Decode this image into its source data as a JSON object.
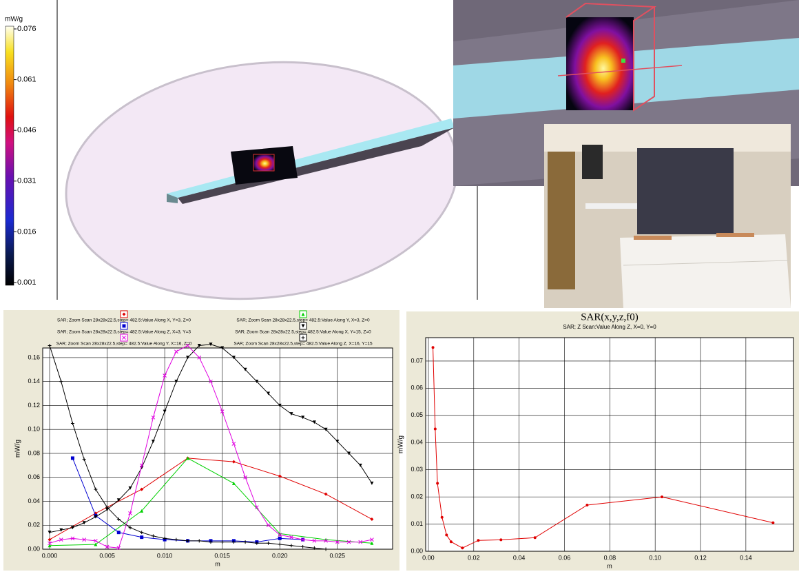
{
  "colorbar": {
    "label": "mW/g",
    "lim": [
      0.001,
      0.076
    ],
    "ticks": [
      0.076,
      0.061,
      0.046,
      0.031,
      0.016,
      0.001
    ]
  },
  "chart_data": [
    {
      "type": "line",
      "xlabel": "m",
      "ylabel": "mW/g",
      "xlim": [
        -0.0006,
        0.0298
      ],
      "ylim": [
        0,
        0.168
      ],
      "xticks": [
        {
          "value": 0,
          "label": "0.000"
        },
        0.005,
        {
          "value": 0.01,
          "label": "0.010"
        },
        0.015,
        {
          "value": 0.02,
          "label": "0.020"
        },
        0.025
      ],
      "yticks": [
        {
          "value": 0,
          "label": "0.00"
        },
        0.02,
        0.04,
        0.06,
        0.08,
        {
          "value": 0.1,
          "label": "0.10"
        },
        0.12,
        0.14,
        0.16
      ],
      "grid": true,
      "series": [
        {
          "name": "SAR; Zoom Scan 28x28x22.5,step= 482.5:Value Along X, Y=3, Z=0",
          "color": "#e00000",
          "marker": "diamond",
          "x": [
            0,
            0.004,
            0.008,
            0.012,
            0.016,
            0.02,
            0.024,
            0.028
          ],
          "values": [
            0.008,
            0.03,
            0.05,
            0.076,
            0.073,
            0.061,
            0.046,
            0.025
          ]
        },
        {
          "name": "SAR; Zoom Scan 28x28x22.5,step= 482.5:Value Along Y, X=3, Z=0",
          "color": "#00d000",
          "marker": "triangle",
          "x": [
            0,
            0.004,
            0.008,
            0.012,
            0.016,
            0.02,
            0.024,
            0.028
          ],
          "values": [
            0.003,
            0.004,
            0.032,
            0.076,
            0.055,
            0.013,
            0.008,
            0.005
          ]
        },
        {
          "name": "SAR; Zoom Scan 28x28x22.5,step= 482.5:Value Along Z, X=3, Y=3",
          "color": "#0000d0",
          "marker": "square",
          "x": [
            0.002,
            0.004,
            0.006,
            0.008,
            0.01,
            0.012,
            0.014,
            0.016,
            0.018,
            0.02,
            0.022
          ],
          "values": [
            0.076,
            0.028,
            0.014,
            0.01,
            0.008,
            0.007,
            0.007,
            0.007,
            0.006,
            0.009,
            0.008
          ]
        },
        {
          "name": "SAR; Zoom Scan 28x28x22.5,step= 482.5:Value Along X, Y=15, Z=0",
          "color": "#000000",
          "marker": "triangle-down",
          "x": [
            0,
            0.001,
            0.002,
            0.003,
            0.004,
            0.005,
            0.006,
            0.007,
            0.008,
            0.009,
            0.01,
            0.011,
            0.012,
            0.013,
            0.014,
            0.015,
            0.016,
            0.017,
            0.018,
            0.019,
            0.02,
            0.021,
            0.022,
            0.023,
            0.024,
            0.025,
            0.026,
            0.027,
            0.028
          ],
          "values": [
            0.014,
            0.016,
            0.018,
            0.022,
            0.027,
            0.033,
            0.041,
            0.051,
            0.068,
            0.09,
            0.115,
            0.14,
            0.16,
            0.17,
            0.171,
            0.168,
            0.16,
            0.15,
            0.14,
            0.13,
            0.12,
            0.113,
            0.11,
            0.106,
            0.1,
            0.09,
            0.08,
            0.07,
            0.055
          ]
        },
        {
          "name": "SAR; Zoom Scan 28x28x22.5,step= 482.5:Value Along Y, X=16, Z=0",
          "color": "#e000e0",
          "marker": "x",
          "x": [
            0,
            0.001,
            0.002,
            0.003,
            0.004,
            0.005,
            0.006,
            0.007,
            0.008,
            0.009,
            0.01,
            0.011,
            0.012,
            0.013,
            0.014,
            0.015,
            0.016,
            0.017,
            0.018,
            0.019,
            0.02,
            0.021,
            0.022,
            0.023,
            0.024,
            0.025,
            0.026,
            0.027,
            0.028
          ],
          "values": [
            0.005,
            0.008,
            0.009,
            0.008,
            0.007,
            0.002,
            0.001,
            0.03,
            0.07,
            0.11,
            0.145,
            0.165,
            0.17,
            0.16,
            0.14,
            0.115,
            0.088,
            0.06,
            0.035,
            0.02,
            0.012,
            0.01,
            0.008,
            0.007,
            0.007,
            0.006,
            0.006,
            0.006,
            0.008
          ]
        },
        {
          "name": "SAR; Zoom Scan 28x28x22.5,step= 482.5:Value Along Z, X=16, Y=15",
          "color": "#000000",
          "marker": "plus",
          "x": [
            0,
            0.001,
            0.002,
            0.003,
            0.004,
            0.005,
            0.006,
            0.007,
            0.008,
            0.009,
            0.01,
            0.011,
            0.012,
            0.013,
            0.014,
            0.015,
            0.016,
            0.017,
            0.018,
            0.019,
            0.02,
            0.021,
            0.022,
            0.023,
            0.024
          ],
          "values": [
            0.17,
            0.14,
            0.105,
            0.075,
            0.05,
            0.035,
            0.025,
            0.018,
            0.014,
            0.011,
            0.009,
            0.008,
            0.007,
            0.007,
            0.006,
            0.006,
            0.006,
            0.006,
            0.005,
            0.005,
            0.004,
            0.003,
            0.002,
            0.001,
            0
          ]
        }
      ]
    },
    {
      "type": "line",
      "title": "SAR(x,y,z,f0)",
      "subtitle": "SAR; Z Scan:Value Along Z, X=0, Y=0",
      "xlabel": "m",
      "ylabel": "mW/g",
      "xlim": [
        -0.0012,
        0.161
      ],
      "ylim": [
        0,
        0.0786
      ],
      "xticks": [
        {
          "value": 0,
          "label": "0.00"
        },
        0.02,
        0.04,
        0.06,
        0.08,
        {
          "value": 0.1,
          "label": "0.10"
        },
        0.12,
        0.14
      ],
      "yticks": [
        {
          "value": 0,
          "label": "0.00"
        },
        0.01,
        0.02,
        0.03,
        0.04,
        0.05,
        0.06,
        0.07
      ],
      "grid": true,
      "series": [
        {
          "color": "#e00000",
          "marker": "circle",
          "x": [
            0.002,
            0.003,
            0.004,
            0.006,
            0.008,
            0.01,
            0.015,
            0.022,
            0.032,
            0.047,
            0.07,
            0.103,
            0.152
          ],
          "values": [
            0.075,
            0.045,
            0.025,
            0.0125,
            0.006,
            0.0035,
            0.0012,
            0.004,
            0.0042,
            0.005,
            0.017,
            0.02,
            0.0105
          ]
        }
      ]
    }
  ]
}
